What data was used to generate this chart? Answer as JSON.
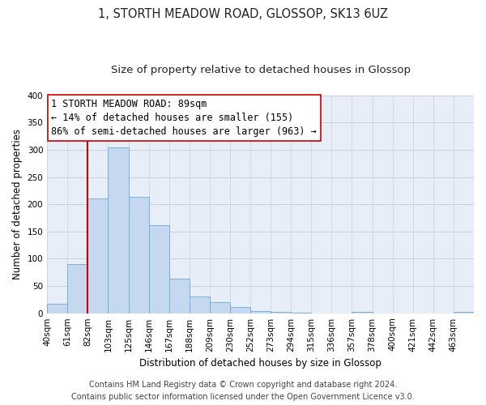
{
  "title": "1, STORTH MEADOW ROAD, GLOSSOP, SK13 6UZ",
  "subtitle": "Size of property relative to detached houses in Glossop",
  "xlabel": "Distribution of detached houses by size in Glossop",
  "ylabel": "Number of detached properties",
  "bin_labels": [
    "40sqm",
    "61sqm",
    "82sqm",
    "103sqm",
    "125sqm",
    "146sqm",
    "167sqm",
    "188sqm",
    "209sqm",
    "230sqm",
    "252sqm",
    "273sqm",
    "294sqm",
    "315sqm",
    "336sqm",
    "357sqm",
    "378sqm",
    "400sqm",
    "421sqm",
    "442sqm",
    "463sqm"
  ],
  "bar_values": [
    17,
    90,
    211,
    305,
    213,
    161,
    64,
    31,
    20,
    11,
    4,
    2,
    1,
    0,
    0,
    2,
    0,
    0,
    0,
    0,
    2
  ],
  "bar_color": "#c5d8f0",
  "bar_edge_color": "#6aaad4",
  "vline_color": "#cc0000",
  "vline_bin_index": 2,
  "ylim": [
    0,
    400
  ],
  "yticks": [
    0,
    50,
    100,
    150,
    200,
    250,
    300,
    350,
    400
  ],
  "annotation_line1": "1 STORTH MEADOW ROAD: 89sqm",
  "annotation_line2": "← 14% of detached houses are smaller (155)",
  "annotation_line3": "86% of semi-detached houses are larger (963) →",
  "annotation_box_color": "#ffffff",
  "annotation_box_edge": "#cc0000",
  "footer_line1": "Contains HM Land Registry data © Crown copyright and database right 2024.",
  "footer_line2": "Contains public sector information licensed under the Open Government Licence v3.0.",
  "bg_color": "#e8eef8",
  "title_fontsize": 10.5,
  "subtitle_fontsize": 9.5,
  "axis_label_fontsize": 8.5,
  "tick_fontsize": 7.5,
  "annotation_fontsize": 8.5,
  "footer_fontsize": 7
}
